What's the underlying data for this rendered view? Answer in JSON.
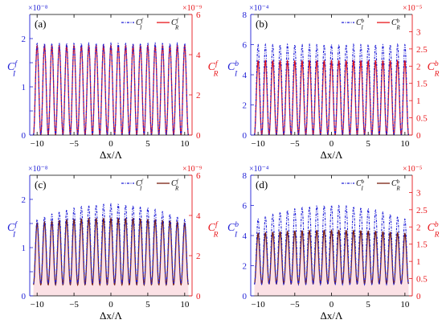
{
  "chart_data": [
    {
      "type": "line",
      "panel_label": "(a)",
      "xlabel": "Δx/Λ",
      "ylabel_left": "C_I^f",
      "ylabel_right": "C_R^f",
      "left_exponent": "×10⁻⁸",
      "right_exponent": "×10⁻⁹",
      "xlim": [
        -11,
        11
      ],
      "ylim_left": [
        0,
        2.5
      ],
      "ylim_right": [
        0,
        6
      ],
      "x_ticks": [
        -10,
        -5,
        0,
        5,
        10
      ],
      "x_tick_labels": [
        "−10",
        "−5",
        "0",
        "5",
        "10"
      ],
      "left_ticks": [
        0,
        0.5,
        1,
        1.5,
        2
      ],
      "left_tick_labels": [
        "0",
        "",
        "1",
        "",
        "2"
      ],
      "right_ticks": [
        0,
        2,
        4,
        6
      ],
      "right_tick_labels": [
        "0",
        "2",
        "4",
        "6"
      ],
      "fringe_count": 21,
      "x_span": [
        -10.5,
        10.5
      ],
      "series": [
        {
          "name": "C_I^f",
          "label_main": "C",
          "label_sub": "I",
          "label_sup": "f",
          "axis": "left",
          "color": "#1f1fd6",
          "style": "dashdot",
          "peak_center": 1.9,
          "peak_edge": 1.9,
          "min": 0
        },
        {
          "name": "C_R^f",
          "label_main": "C",
          "label_sub": "R",
          "label_sup": "f",
          "axis": "right",
          "color": "#e8161a",
          "style": "solid",
          "peak_center": 4.45,
          "peak_edge": 4.45,
          "min": 0
        }
      ],
      "shade": false
    },
    {
      "type": "line",
      "panel_label": "(b)",
      "xlabel": "Δx/Λ",
      "ylabel_left": "C_I^b",
      "ylabel_right": "C_R^b",
      "left_exponent": "×10⁻⁴",
      "right_exponent": "×10⁻⁵",
      "xlim": [
        -11,
        11
      ],
      "ylim_left": [
        0,
        8
      ],
      "ylim_right": [
        0,
        3.5
      ],
      "x_ticks": [
        -10,
        -5,
        0,
        5,
        10
      ],
      "x_tick_labels": [
        "−10",
        "−5",
        "0",
        "5",
        "10"
      ],
      "left_ticks": [
        0,
        2,
        4,
        6,
        8
      ],
      "left_tick_labels": [
        "0",
        "2",
        "4",
        "6",
        "8"
      ],
      "right_ticks": [
        0,
        0.5,
        1,
        1.5,
        2,
        2.5,
        3
      ],
      "right_tick_labels": [
        "0",
        "0.5",
        "1",
        "1.5",
        "2",
        "2.5",
        "3"
      ],
      "fringe_count": 21,
      "x_span": [
        -10.5,
        10.5
      ],
      "series": [
        {
          "name": "C_I^b",
          "label_main": "C",
          "label_sub": "I",
          "label_sup": "b",
          "axis": "left",
          "color": "#1f1fd6",
          "style": "dashdot",
          "peak_center": 6.0,
          "peak_edge": 6.0,
          "min": 0
        },
        {
          "name": "C_R^b",
          "label_main": "C",
          "label_sub": "R",
          "label_sup": "b",
          "axis": "right",
          "color": "#e8161a",
          "style": "solid",
          "peak_center": 2.15,
          "peak_edge": 2.15,
          "min": 0
        }
      ],
      "shade": false
    },
    {
      "type": "line",
      "panel_label": "(c)",
      "xlabel": "Δx/Λ",
      "ylabel_left": "C_I^f",
      "ylabel_right": "C_R^f",
      "left_exponent": "×10⁻⁸",
      "right_exponent": "×10⁻⁹",
      "xlim": [
        -11,
        11
      ],
      "ylim_left": [
        0,
        2.5
      ],
      "ylim_right": [
        0,
        6
      ],
      "x_ticks": [
        -10,
        -5,
        0,
        5,
        10
      ],
      "x_tick_labels": [
        "−10",
        "−5",
        "0",
        "5",
        "10"
      ],
      "left_ticks": [
        0,
        0.5,
        1,
        1.5,
        2
      ],
      "left_tick_labels": [
        "0",
        "",
        "1",
        "",
        "2"
      ],
      "right_ticks": [
        0,
        2,
        4,
        6
      ],
      "right_tick_labels": [
        "0",
        "2",
        "4",
        "6"
      ],
      "fringe_count": 21,
      "x_span": [
        -10.5,
        10.5
      ],
      "series": [
        {
          "name": "C_I^f",
          "label_main": "C",
          "label_sub": "I",
          "label_sup": "f",
          "axis": "left",
          "color": "#1f1fd6",
          "style": "dashdot",
          "peak_center": 1.9,
          "peak_edge": 1.55,
          "min": 0.25
        },
        {
          "name": "C_R^f",
          "label_main": "C",
          "label_sub": "R",
          "label_sup": "f",
          "axis": "right",
          "color": "#7a1f10",
          "style": "solid",
          "peak_center": 3.85,
          "peak_edge": 3.6,
          "min": 0.55
        }
      ],
      "shade": true
    },
    {
      "type": "line",
      "panel_label": "(d)",
      "xlabel": "Δx/Λ",
      "ylabel_left": "C_I^b",
      "ylabel_right": "C_R^b",
      "left_exponent": "×10⁻⁴",
      "right_exponent": "×10⁻⁵",
      "xlim": [
        -11,
        11
      ],
      "ylim_left": [
        0,
        8
      ],
      "ylim_right": [
        0,
        3.5
      ],
      "x_ticks": [
        -10,
        -5,
        0,
        5,
        10
      ],
      "x_tick_labels": [
        "−10",
        "−5",
        "0",
        "5",
        "10"
      ],
      "left_ticks": [
        0,
        2,
        4,
        6,
        8
      ],
      "left_tick_labels": [
        "0",
        "2",
        "4",
        "6",
        "8"
      ],
      "right_ticks": [
        0,
        0.5,
        1,
        1.5,
        2,
        2.5,
        3
      ],
      "right_tick_labels": [
        "0",
        "0.5",
        "1",
        "1.5",
        "2",
        "2.5",
        "3"
      ],
      "fringe_count": 21,
      "x_span": [
        -10.5,
        10.5
      ],
      "series": [
        {
          "name": "C_I^b",
          "label_main": "C",
          "label_sub": "I",
          "label_sup": "b",
          "axis": "left",
          "color": "#1f1fd6",
          "style": "dashdot",
          "peak_center": 6.0,
          "peak_edge": 5.0,
          "min": 0.75
        },
        {
          "name": "C_R^b",
          "label_main": "C",
          "label_sub": "R",
          "label_sup": "b",
          "axis": "right",
          "color": "#7a1f10",
          "style": "solid",
          "peak_center": 1.9,
          "peak_edge": 1.8,
          "min": 0.35
        }
      ],
      "shade": true
    }
  ],
  "colors": {
    "left_axis": "#1f1fd6",
    "right_axis": "#e8161a",
    "shade_fill": "#f7c9cf"
  }
}
